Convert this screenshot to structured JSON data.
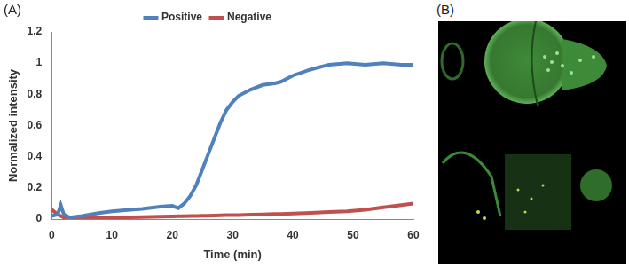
{
  "chart_data": {
    "type": "line",
    "annotations": [
      "(A)",
      "(B)"
    ],
    "x_label": "Time (min)",
    "y_label": "Normalized intensity",
    "x": [
      0,
      1,
      1.5,
      2,
      3,
      5,
      8,
      10,
      13,
      15,
      18,
      20,
      21,
      22,
      23,
      24,
      25,
      26,
      27,
      28,
      29,
      30,
      31,
      33,
      35,
      37,
      38,
      40,
      43,
      46,
      49,
      52,
      55,
      58,
      60
    ],
    "series": [
      {
        "name": "Positive",
        "color": "#4f81bd",
        "values": [
          0.02,
          0.03,
          0.09,
          0.03,
          0.01,
          0.02,
          0.04,
          0.05,
          0.06,
          0.065,
          0.08,
          0.085,
          0.07,
          0.1,
          0.15,
          0.22,
          0.32,
          0.42,
          0.52,
          0.62,
          0.7,
          0.75,
          0.79,
          0.83,
          0.86,
          0.87,
          0.88,
          0.92,
          0.96,
          0.99,
          1.0,
          0.99,
          1.0,
          0.99,
          0.99
        ]
      },
      {
        "name": "Negative",
        "color": "#c0504d",
        "values": [
          0.06,
          0.03,
          0.02,
          0.01,
          0.005,
          0.005,
          0.008,
          0.01,
          0.012,
          0.013,
          0.015,
          0.017,
          0.018,
          0.019,
          0.02,
          0.02,
          0.021,
          0.022,
          0.023,
          0.024,
          0.025,
          0.025,
          0.026,
          0.028,
          0.03,
          0.032,
          0.033,
          0.035,
          0.04,
          0.045,
          0.05,
          0.06,
          0.075,
          0.09,
          0.1
        ]
      }
    ],
    "xlim": [
      0,
      60
    ],
    "xticks": [
      0,
      10,
      20,
      30,
      40,
      50,
      60
    ],
    "ylim": [
      0,
      1.2
    ],
    "yticks": [
      0,
      0.2,
      0.4,
      0.6,
      0.8,
      1,
      1.2
    ],
    "grid": false,
    "legend": "top"
  }
}
